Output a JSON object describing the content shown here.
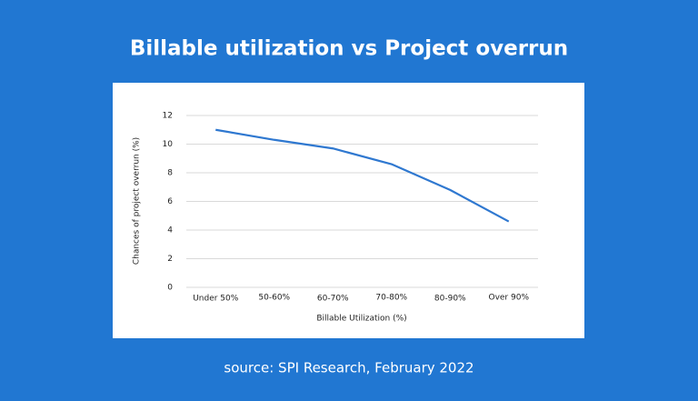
{
  "chart_data": {
    "type": "line",
    "title": "Billable utilization vs Project overrun",
    "x_label": "Billable Utilization (%)",
    "y_label": "Chances of project overrun (%)",
    "categories": [
      "Under 50%",
      "50-60%",
      "60-70%",
      "70-80%",
      "80-90%",
      "Over 90%"
    ],
    "values": [
      11,
      10.3,
      9.7,
      8.6,
      6.8,
      4.6
    ],
    "color": "#2f78d0",
    "ylim": [
      0,
      12
    ],
    "yticks": [
      0,
      2,
      4,
      6,
      8,
      10,
      12
    ],
    "grid": true,
    "source": "source: SPI Research, February 2022"
  }
}
